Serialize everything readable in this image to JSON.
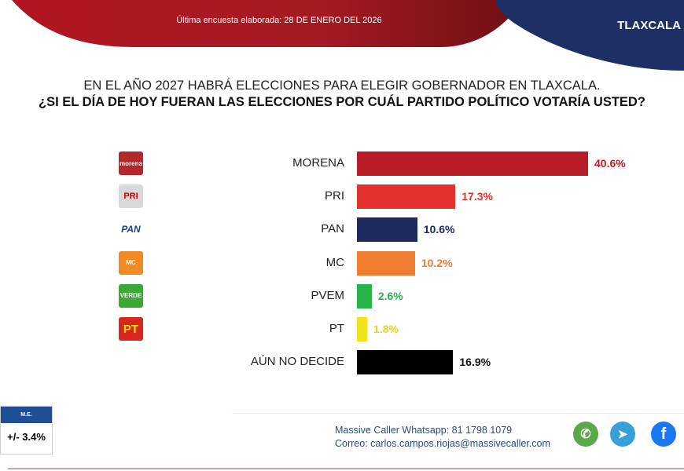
{
  "header": {
    "survey_date": "Última encuesta elaborada: 28 DE ENERO DEL 2026",
    "state": "TLAXCALA"
  },
  "question": {
    "line1": "EN EL AÑO 2027 HABRÁ ELECCIONES PARA ELEGIR GOBERNADOR EN TLAXCALA.",
    "line2": "¿SI EL DÍA DE HOY FUERAN LAS ELECCIONES POR CUÁL PARTIDO POLÍTICO VOTARÍA USTED?"
  },
  "chart_data": {
    "type": "bar",
    "orientation": "horizontal",
    "categories": [
      "MORENA",
      "PRI",
      "PAN",
      "MC",
      "PVEM",
      "PT",
      "AÚN NO DECIDE"
    ],
    "values": [
      40.6,
      17.3,
      10.6,
      10.2,
      2.6,
      1.8,
      16.9
    ],
    "value_labels": [
      "40.6%",
      "17.3%",
      "10.6%",
      "10.2%",
      "2.6%",
      "1.8%",
      "16.9%"
    ],
    "colors": [
      "#b91c27",
      "#e53030",
      "#1f2a5c",
      "#ee7d30",
      "#26b34a",
      "#f2e21c",
      "#000000"
    ],
    "label_colors": [
      "#b91c27",
      "#e53030",
      "#1f2a5c",
      "#ee7d30",
      "#26b34a",
      "#e8d21a",
      "#111111"
    ],
    "logos": [
      {
        "text": "morena",
        "bg": "#b3282d"
      },
      {
        "text": "PRI",
        "bg": "#d9d9d9"
      },
      {
        "text": "PAN",
        "bg": "#ffffff"
      },
      {
        "text": "MC",
        "bg": "#f08a24"
      },
      {
        "text": "VERDE",
        "bg": "#3aaa35"
      },
      {
        "text": "PT",
        "bg": "#d7261e"
      }
    ],
    "xlim": [
      0,
      42
    ],
    "grid": false,
    "legend": "none"
  },
  "margin_error": {
    "label": "M.E.",
    "value": "+/- 3.4%"
  },
  "contact": {
    "whatsapp": "Massive Caller Whatsapp: 81 1798 1079",
    "email": "Correo: carlos.campos.riojas@massivecaller.com"
  },
  "social": [
    "whatsapp-icon",
    "telegram-icon",
    "facebook-icon"
  ]
}
